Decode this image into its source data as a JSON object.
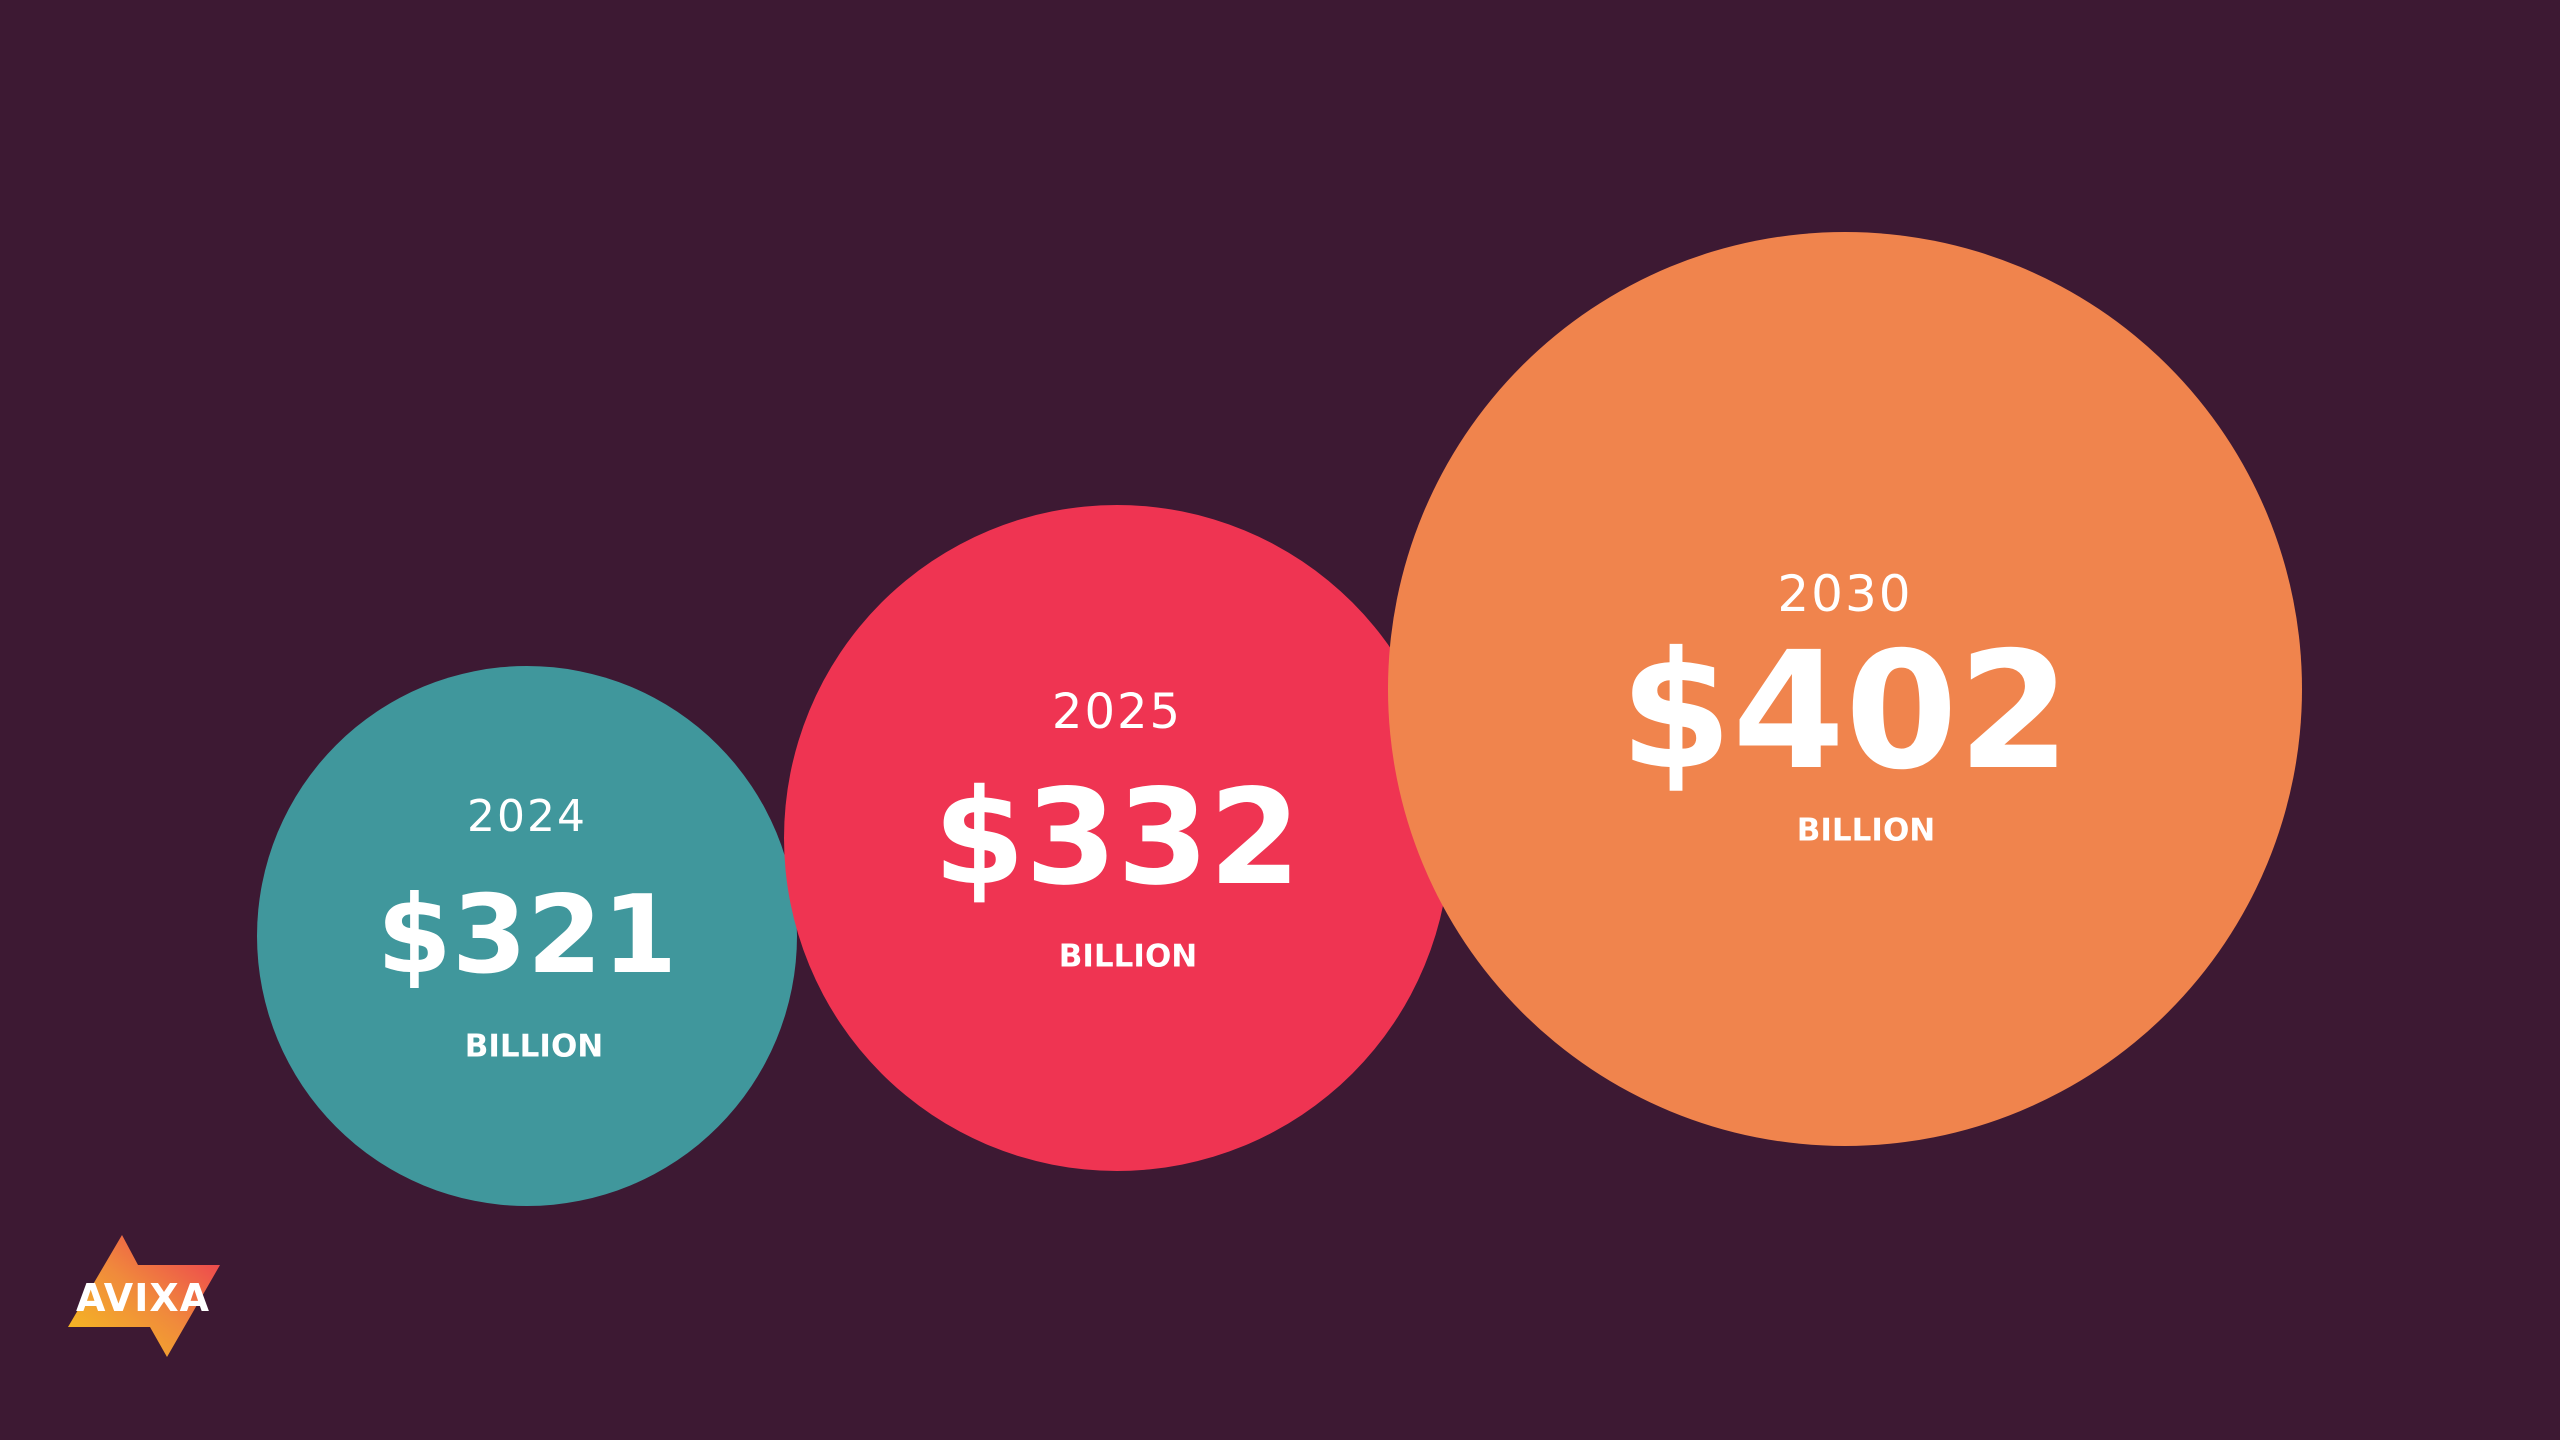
{
  "colors": {
    "background": "#3d1933",
    "teal": "#40979c",
    "red": "#ef3452",
    "orange": "#f0844d"
  },
  "bubbles": [
    {
      "year": "2024",
      "value": "$321",
      "unit": "BILLION",
      "color": "#40979c"
    },
    {
      "year": "2025",
      "value": "$332",
      "unit": "BILLION",
      "color": "#ef3452"
    },
    {
      "year": "2030",
      "value": "$402",
      "unit": "BILLION",
      "color": "#f0844d"
    }
  ],
  "logo": {
    "text": "AVIXA"
  }
}
